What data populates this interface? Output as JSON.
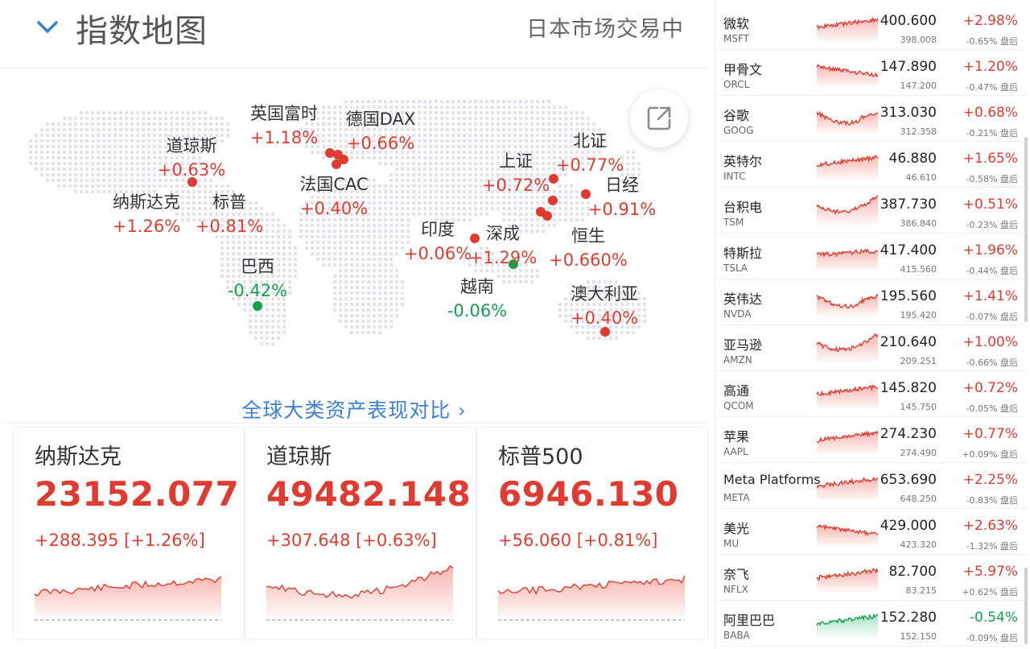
{
  "header": {
    "title": "指数地图",
    "status": "日本市场交易中"
  },
  "map": {
    "compare_link": "全球大类资产表现对比",
    "indices": [
      {
        "name": "道琼斯",
        "change": "+0.63%",
        "dir": "up"
      },
      {
        "name": "纳斯达克",
        "change": "+1.26%",
        "dir": "up"
      },
      {
        "name": "标普",
        "change": "+0.81%",
        "dir": "up"
      },
      {
        "name": "巴西",
        "change": "-0.42%",
        "dir": "down"
      },
      {
        "name": "英国富时",
        "change": "+1.18%",
        "dir": "up"
      },
      {
        "name": "德国DAX",
        "change": "+0.66%",
        "dir": "up"
      },
      {
        "name": "法国CAC",
        "change": "+0.40%",
        "dir": "up"
      },
      {
        "name": "印度",
        "change": "+0.06%",
        "dir": "up"
      },
      {
        "name": "深成",
        "change": "+1.29%",
        "dir": "up"
      },
      {
        "name": "上证",
        "change": "+0.72%",
        "dir": "up"
      },
      {
        "name": "北证",
        "change": "+0.77%",
        "dir": "up"
      },
      {
        "name": "日经",
        "change": "+0.91%",
        "dir": "up"
      },
      {
        "name": "恒生",
        "change": "+0.660%",
        "dir": "up"
      },
      {
        "name": "越南",
        "change": "-0.06%",
        "dir": "down"
      },
      {
        "name": "澳大利亚",
        "change": "+0.40%",
        "dir": "up"
      }
    ]
  },
  "cards": [
    {
      "name": "纳斯达克",
      "value": "23152.077",
      "change": "+288.395 [+1.26%]"
    },
    {
      "name": "道琼斯",
      "value": "49482.148",
      "change": "+307.648 [+0.63%]"
    },
    {
      "name": "标普500",
      "value": "6946.130",
      "change": "+56.060 [+0.81%]"
    }
  ],
  "stocks": [
    {
      "name": "微软",
      "ticker": "MSFT",
      "price": "400.600",
      "pct": "+2.98%",
      "pre": "398.008",
      "ah": "-0.65% 盘后",
      "dir": "up"
    },
    {
      "name": "甲骨文",
      "ticker": "ORCL",
      "price": "147.890",
      "pct": "+1.20%",
      "pre": "147.200",
      "ah": "-0.47% 盘后",
      "dir": "up"
    },
    {
      "name": "谷歌",
      "ticker": "GOOG",
      "price": "313.030",
      "pct": "+0.68%",
      "pre": "312.358",
      "ah": "-0.21% 盘后",
      "dir": "up"
    },
    {
      "name": "英特尔",
      "ticker": "INTC",
      "price": "46.880",
      "pct": "+1.65%",
      "pre": "46.610",
      "ah": "-0.58% 盘后",
      "dir": "up"
    },
    {
      "name": "台积电",
      "ticker": "TSM",
      "price": "387.730",
      "pct": "+0.51%",
      "pre": "386.840",
      "ah": "-0.23% 盘后",
      "dir": "up"
    },
    {
      "name": "特斯拉",
      "ticker": "TSLA",
      "price": "417.400",
      "pct": "+1.96%",
      "pre": "415.560",
      "ah": "-0.44% 盘后",
      "dir": "up"
    },
    {
      "name": "英伟达",
      "ticker": "NVDA",
      "price": "195.560",
      "pct": "+1.41%",
      "pre": "195.420",
      "ah": "-0.07% 盘后",
      "dir": "up"
    },
    {
      "name": "亚马逊",
      "ticker": "AMZN",
      "price": "210.640",
      "pct": "+1.00%",
      "pre": "209.251",
      "ah": "-0.66% 盘后",
      "dir": "up"
    },
    {
      "name": "高通",
      "ticker": "QCOM",
      "price": "145.820",
      "pct": "+0.72%",
      "pre": "145.750",
      "ah": "-0.05% 盘后",
      "dir": "up"
    },
    {
      "name": "苹果",
      "ticker": "AAPL",
      "price": "274.230",
      "pct": "+0.77%",
      "pre": "274.490",
      "ah": "+0.09% 盘后",
      "dir": "up"
    },
    {
      "name": "Meta Platforms",
      "ticker": "META",
      "price": "653.690",
      "pct": "+2.25%",
      "pre": "648.250",
      "ah": "-0.83% 盘后",
      "dir": "up"
    },
    {
      "name": "美光",
      "ticker": "MU",
      "price": "429.000",
      "pct": "+2.63%",
      "pre": "423.320",
      "ah": "-1.32% 盘后",
      "dir": "up"
    },
    {
      "name": "奈飞",
      "ticker": "NFLX",
      "price": "82.700",
      "pct": "+5.97%",
      "pre": "83.215",
      "ah": "+0.62% 盘后",
      "dir": "up"
    },
    {
      "name": "阿里巴巴",
      "ticker": "BABA",
      "price": "152.280",
      "pct": "-0.54%",
      "pre": "152.150",
      "ah": "-0.09% 盘后",
      "dir": "down"
    }
  ],
  "colors": {
    "up": "#e03b30",
    "down": "#14a04e",
    "link": "#3b7fd4"
  }
}
